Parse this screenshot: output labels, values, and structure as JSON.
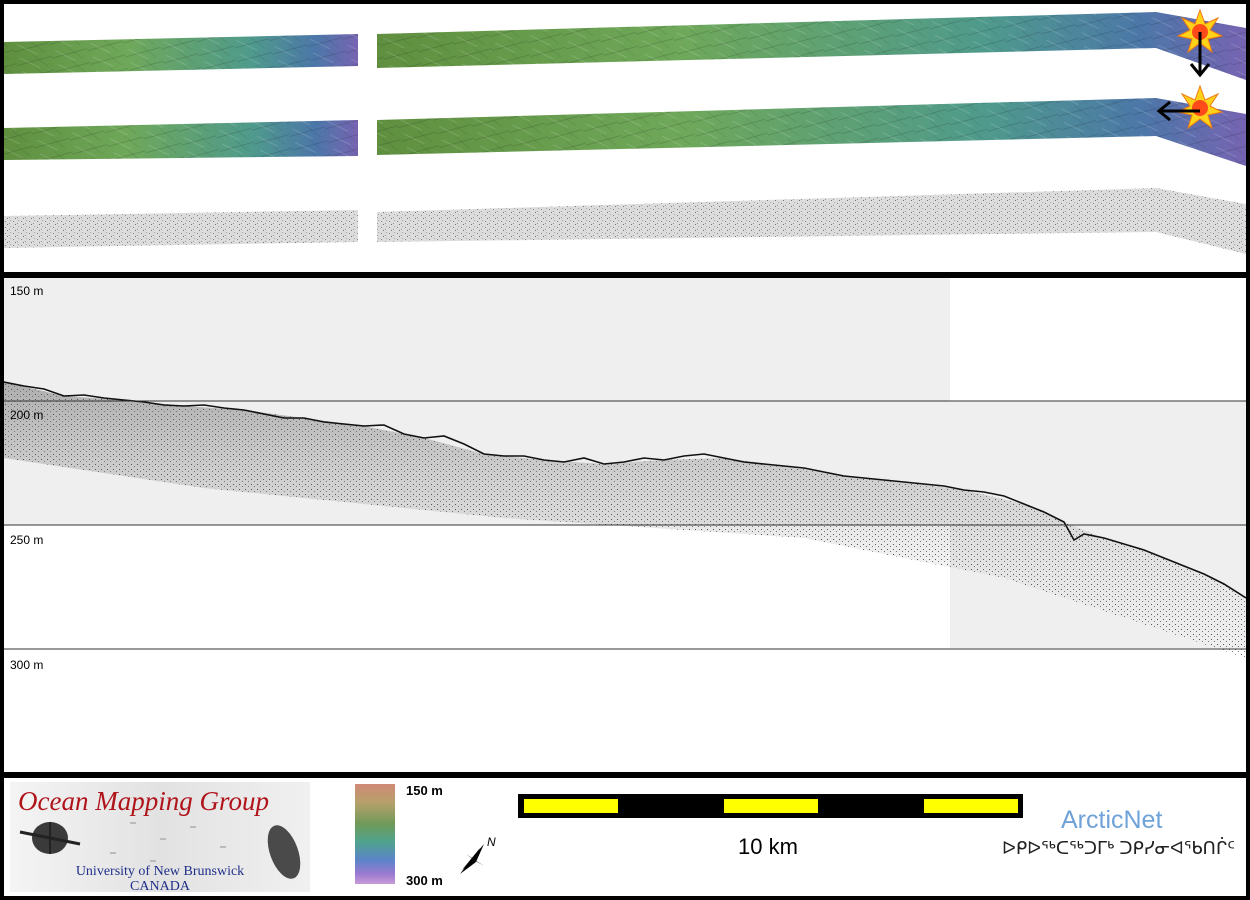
{
  "profile": {
    "depth_labels": [
      "150 m",
      "200 m",
      "250 m",
      "300 m"
    ]
  },
  "legend": {
    "logo": {
      "title": "Ocean Mapping Group",
      "university": "University of New Brunswick",
      "country": "CANADA"
    },
    "colorbar": {
      "top_label": "150 m",
      "bottom_label": "300 m"
    },
    "north_arrow_label": "N",
    "scale_bar": {
      "label": "10 km",
      "colors": {
        "bar": "#000000",
        "segment": "#ffff00"
      }
    },
    "arcticnet": {
      "name": "ArcticNet",
      "syllabics": "ᐅᑭᐅᖅᑕᖅᑐᒥᒃ ᑐᑭᓯᓂᐊᖃᑎᒌᑦ"
    }
  },
  "colors": {
    "frame": "#000000",
    "shallow_band": "#efefef",
    "logo_title": "#b0141b",
    "logo_subtitle": "#1f2f8a",
    "arcticnet": "#6fa2d8"
  },
  "icons": {
    "sun_illumination_top": "sun-icon",
    "sun_illumination_middle": "sun-icon",
    "arrow_down": "arrow-down-icon",
    "arrow_left": "arrow-left-icon",
    "north_arrow": "compass-icon"
  }
}
